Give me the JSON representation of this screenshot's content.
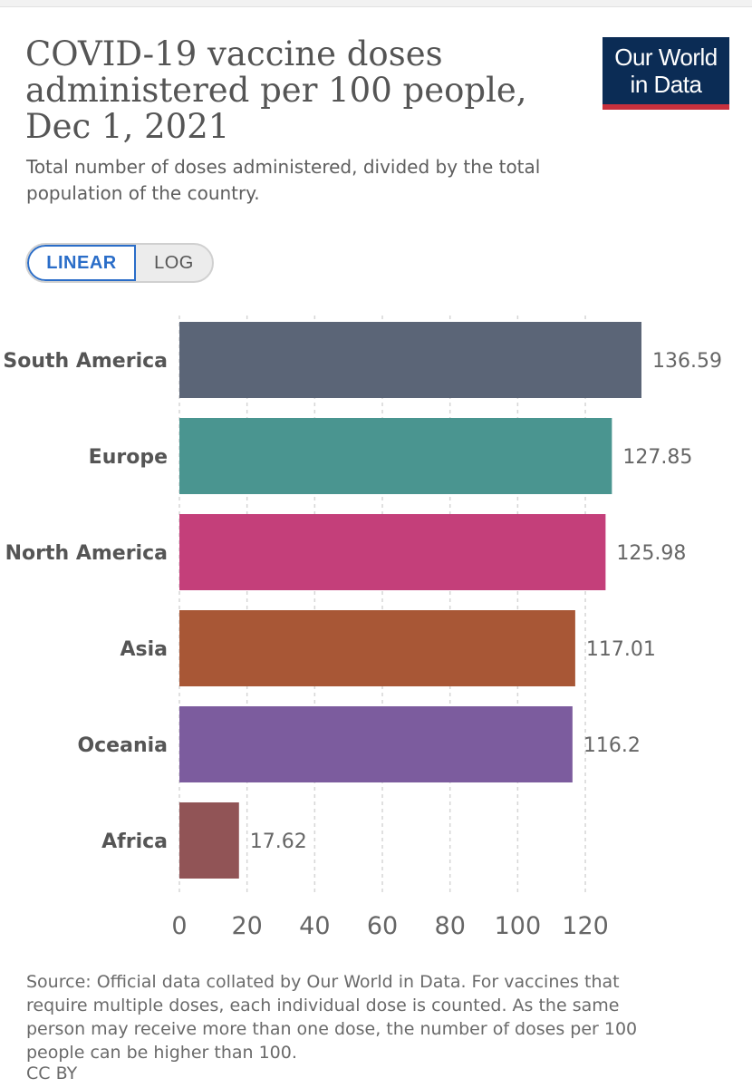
{
  "header": {
    "title": "COVID-19 vaccine doses administered per 100 people, Dec 1, 2021",
    "subtitle": "Total number of doses administered, divided by the total population of the country."
  },
  "logo": {
    "line1": "Our World",
    "line2": "in Data"
  },
  "toggle": {
    "linear_label": "LINEAR",
    "log_label": "LOG",
    "selected": "LINEAR"
  },
  "footer": {
    "source": "Source: Official data collated by Our World in Data. For vaccines that require multiple doses, each individual dose is counted. As the same person may receive more than one dose, the number of doses per 100 people can be higher than 100.",
    "license": "CC BY"
  },
  "colors": {
    "South America": "#5b6577",
    "Europe": "#4a9590",
    "North America": "#c43f7a",
    "Asia": "#a85736",
    "Oceania": "#7c5c9e",
    "Africa": "#915456"
  },
  "chart_data": {
    "type": "bar",
    "orientation": "horizontal",
    "categories": [
      "South America",
      "Europe",
      "North America",
      "Asia",
      "Oceania",
      "Africa"
    ],
    "values": [
      136.59,
      127.85,
      125.98,
      117.01,
      116.2,
      17.62
    ],
    "value_labels": [
      "136.59",
      "127.85",
      "125.98",
      "117.01",
      "116.2",
      "17.62"
    ],
    "xticks": [
      0,
      20,
      40,
      60,
      80,
      100,
      120
    ],
    "xlim": [
      0,
      136.59
    ],
    "grid": "vertical dashed",
    "xlabel": "",
    "ylabel": ""
  }
}
